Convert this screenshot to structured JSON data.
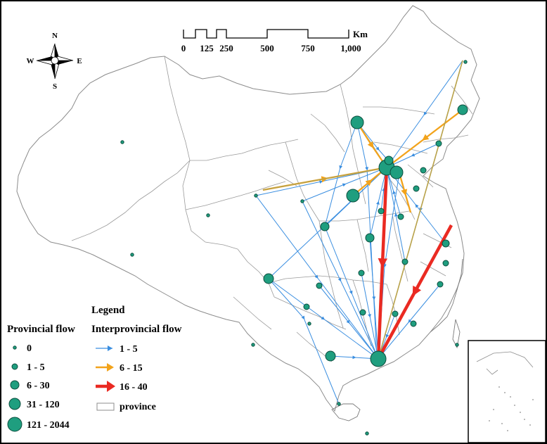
{
  "compass": {
    "n": "N",
    "s": "S",
    "e": "E",
    "w": "W"
  },
  "scale_bar": {
    "unit": "Km",
    "ticks": [
      "0",
      "125",
      "250",
      "500",
      "750",
      "1,000"
    ]
  },
  "legend": {
    "title": "Legend",
    "provincial_heading": "Provincial flow",
    "interprovincial_heading": "Interprovincial flow",
    "provincial_classes": [
      "0",
      "1 - 5",
      "6 - 30",
      "31 - 120",
      "121 - 2044"
    ],
    "interprovincial_classes": [
      "1 - 5",
      "6 - 15",
      "16 - 40"
    ],
    "boundary_label": "province"
  },
  "colors": {
    "node_fill": "#1f9e7f",
    "node_stroke": "#0b4d3d",
    "flow_low": "#3a8ee0",
    "flow_mid": "#f2a31b",
    "flow_high": "#ea2a22",
    "boundary": "#8c8c8c",
    "coast": "#7a7a7a"
  }
}
